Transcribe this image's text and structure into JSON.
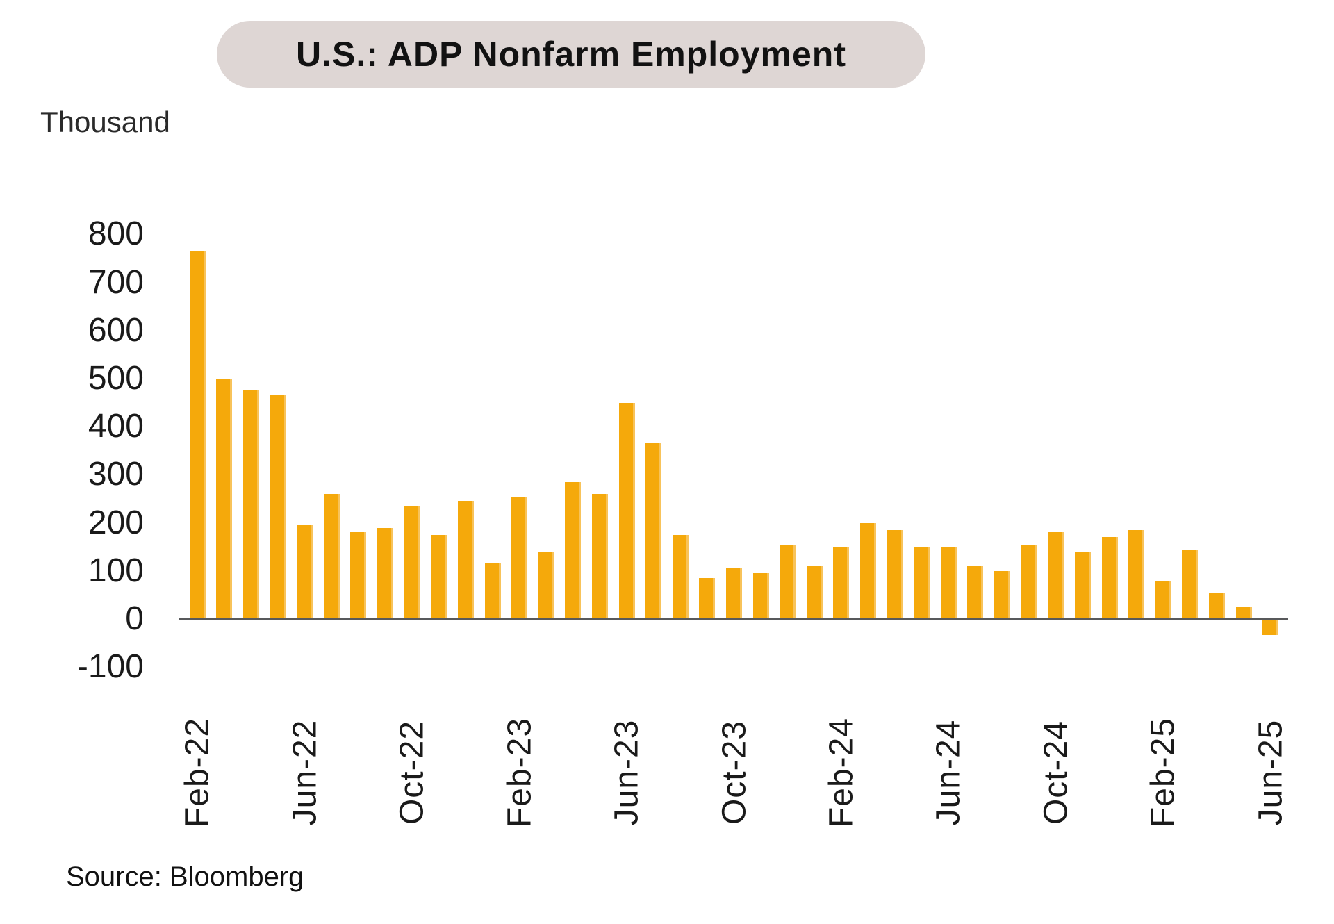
{
  "title": "U.S.: ADP Nonfarm Employment",
  "y_axis_title": "Thousand",
  "source_note": "Source: Bloomberg",
  "colors": {
    "bar": "#F5A90B",
    "bar_edge": "#F8C35A",
    "pill_bg": "#DED6D4",
    "axis_line": "#58595B",
    "text": "#1A1A1A"
  },
  "chart_data": {
    "type": "bar",
    "title": "U.S.: ADP Nonfarm Employment",
    "xlabel": "",
    "ylabel": "Thousand",
    "ylim": [
      -100,
      800
    ],
    "y_tick_step": 100,
    "y_tick_labels": [
      "800",
      "700",
      "600",
      "500",
      "400",
      "300",
      "200",
      "100",
      "0",
      "-100"
    ],
    "grid": false,
    "legend": "none",
    "bar_color": "#F5A90B",
    "categories": [
      "Feb-22",
      "Mar-22",
      "Apr-22",
      "May-22",
      "Jun-22",
      "Jul-22",
      "Aug-22",
      "Sep-22",
      "Oct-22",
      "Nov-22",
      "Dec-22",
      "Jan-23",
      "Feb-23",
      "Mar-23",
      "Apr-23",
      "May-23",
      "Jun-23",
      "Jul-23",
      "Aug-23",
      "Sep-23",
      "Oct-23",
      "Nov-23",
      "Dec-23",
      "Jan-24",
      "Feb-24",
      "Mar-24",
      "Apr-24",
      "May-24",
      "Jun-24",
      "Jul-24",
      "Aug-24",
      "Sep-24",
      "Oct-24",
      "Nov-24",
      "Dec-24",
      "Jan-25",
      "Feb-25",
      "Mar-25",
      "Apr-25",
      "May-25",
      "Jun-25"
    ],
    "values": [
      765,
      500,
      475,
      465,
      195,
      260,
      180,
      190,
      235,
      175,
      245,
      115,
      255,
      140,
      285,
      260,
      450,
      365,
      175,
      85,
      105,
      95,
      155,
      110,
      150,
      200,
      185,
      150,
      150,
      110,
      100,
      155,
      180,
      140,
      170,
      185,
      80,
      145,
      55,
      25,
      -33
    ],
    "x_tick_every": 4,
    "x_tick_labels_shown": [
      "Feb-22",
      "Jun-22",
      "Oct-22",
      "Feb-23",
      "Jun-23",
      "Oct-23",
      "Feb-24",
      "Jun-24",
      "Oct-24",
      "Feb-25",
      "Jun-25"
    ]
  }
}
